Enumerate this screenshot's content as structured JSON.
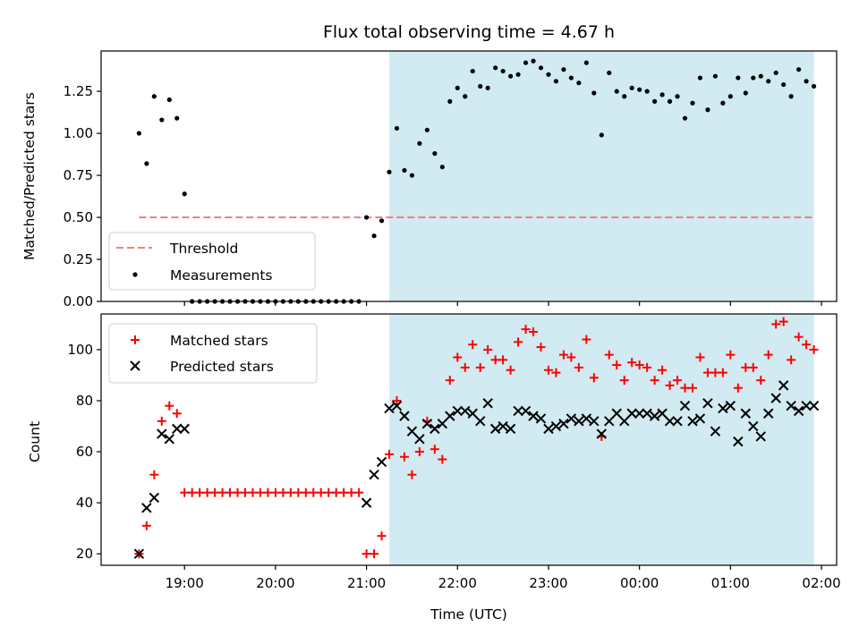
{
  "colors": {
    "observing_window": "#add8e6",
    "threshold": "#f08080",
    "measurements": "#000000",
    "matched": "#ff0000",
    "predicted": "#000000"
  },
  "chart_data": [
    {
      "type": "scatter",
      "title": "Flux total observing time = 4.67 h",
      "ylabel": "Matched/Predicted stars",
      "xlabel": "",
      "ylim": [
        0,
        1.49
      ],
      "yticks": [
        "0.00",
        "0.25",
        "0.50",
        "0.75",
        "1.00",
        "1.25"
      ],
      "observing_window": [
        "21:15",
        "25:55"
      ],
      "threshold": 0.5,
      "legend": {
        "position": "lower left",
        "entries": [
          "Threshold",
          "Measurements"
        ]
      },
      "series": [
        {
          "name": "Measurements",
          "marker": "dot",
          "points": [
            [
              "18:30",
              1.0
            ],
            [
              "18:35",
              0.82
            ],
            [
              "18:40",
              1.22
            ],
            [
              "18:45",
              1.08
            ],
            [
              "18:50",
              1.2
            ],
            [
              "18:55",
              1.09
            ],
            [
              "19:00",
              0.64
            ],
            [
              "19:05",
              0.0
            ],
            [
              "19:10",
              0.0
            ],
            [
              "19:15",
              0.0
            ],
            [
              "19:20",
              0.0
            ],
            [
              "19:25",
              0.0
            ],
            [
              "19:30",
              0.0
            ],
            [
              "19:35",
              0.0
            ],
            [
              "19:40",
              0.0
            ],
            [
              "19:45",
              0.0
            ],
            [
              "19:50",
              0.0
            ],
            [
              "19:55",
              0.0
            ],
            [
              "20:00",
              0.0
            ],
            [
              "20:05",
              0.0
            ],
            [
              "20:10",
              0.0
            ],
            [
              "20:15",
              0.0
            ],
            [
              "20:20",
              0.0
            ],
            [
              "20:25",
              0.0
            ],
            [
              "20:30",
              0.0
            ],
            [
              "20:35",
              0.0
            ],
            [
              "20:40",
              0.0
            ],
            [
              "20:45",
              0.0
            ],
            [
              "20:50",
              0.0
            ],
            [
              "20:55",
              0.0
            ],
            [
              "21:00",
              0.5
            ],
            [
              "21:05",
              0.39
            ],
            [
              "21:10",
              0.48
            ],
            [
              "21:15",
              0.77
            ],
            [
              "21:20",
              1.03
            ],
            [
              "21:25",
              0.78
            ],
            [
              "21:30",
              0.75
            ],
            [
              "21:35",
              0.94
            ],
            [
              "21:40",
              1.02
            ],
            [
              "21:45",
              0.88
            ],
            [
              "21:50",
              0.8
            ],
            [
              "21:55",
              1.19
            ],
            [
              "22:00",
              1.27
            ],
            [
              "22:05",
              1.22
            ],
            [
              "22:10",
              1.37
            ],
            [
              "22:15",
              1.28
            ],
            [
              "22:20",
              1.27
            ],
            [
              "22:25",
              1.39
            ],
            [
              "22:30",
              1.37
            ],
            [
              "22:35",
              1.34
            ],
            [
              "22:40",
              1.35
            ],
            [
              "22:45",
              1.42
            ],
            [
              "22:50",
              1.43
            ],
            [
              "22:55",
              1.39
            ],
            [
              "23:00",
              1.35
            ],
            [
              "23:05",
              1.31
            ],
            [
              "23:10",
              1.38
            ],
            [
              "23:15",
              1.33
            ],
            [
              "23:20",
              1.3
            ],
            [
              "23:25",
              1.42
            ],
            [
              "23:30",
              1.24
            ],
            [
              "23:35",
              0.99
            ],
            [
              "23:40",
              1.36
            ],
            [
              "23:45",
              1.25
            ],
            [
              "23:50",
              1.22
            ],
            [
              "23:55",
              1.27
            ],
            [
              "00:00",
              1.26
            ],
            [
              "00:05",
              1.25
            ],
            [
              "00:10",
              1.19
            ],
            [
              "00:15",
              1.23
            ],
            [
              "00:20",
              1.19
            ],
            [
              "00:25",
              1.22
            ],
            [
              "00:30",
              1.09
            ],
            [
              "00:35",
              1.18
            ],
            [
              "00:40",
              1.33
            ],
            [
              "00:45",
              1.14
            ],
            [
              "00:50",
              1.34
            ],
            [
              "00:55",
              1.18
            ],
            [
              "01:00",
              1.22
            ],
            [
              "01:05",
              1.33
            ],
            [
              "01:10",
              1.24
            ],
            [
              "01:15",
              1.33
            ],
            [
              "01:20",
              1.34
            ],
            [
              "01:25",
              1.31
            ],
            [
              "01:30",
              1.36
            ],
            [
              "01:35",
              1.29
            ],
            [
              "01:40",
              1.22
            ],
            [
              "01:45",
              1.38
            ],
            [
              "01:50",
              1.31
            ],
            [
              "01:55",
              1.28
            ]
          ]
        },
        {
          "name": "Threshold",
          "marker": "dashed-line",
          "points": [
            [
              "18:30",
              0.5
            ],
            [
              "01:55",
              0.5
            ]
          ]
        }
      ]
    },
    {
      "type": "scatter",
      "title": "",
      "ylabel": "Count",
      "xlabel": "Time (UTC)",
      "ylim": [
        15.5,
        114
      ],
      "yticks": [
        "20",
        "40",
        "60",
        "80",
        "100"
      ],
      "xticks": [
        "19:00",
        "20:00",
        "21:00",
        "22:00",
        "23:00",
        "00:00",
        "01:00",
        "02:00"
      ],
      "xlim": [
        "18:05",
        "26:10"
      ],
      "observing_window": [
        "21:15",
        "25:55"
      ],
      "legend": {
        "position": "upper left",
        "entries": [
          "Matched stars",
          "Predicted stars"
        ]
      },
      "series": [
        {
          "name": "Matched stars",
          "marker": "plus",
          "points": [
            [
              "18:30",
              20
            ],
            [
              "18:35",
              31
            ],
            [
              "18:40",
              51
            ],
            [
              "18:45",
              72
            ],
            [
              "18:50",
              78
            ],
            [
              "18:55",
              75
            ],
            [
              "19:00",
              44
            ],
            [
              "19:05",
              44
            ],
            [
              "19:10",
              44
            ],
            [
              "19:15",
              44
            ],
            [
              "19:20",
              44
            ],
            [
              "19:25",
              44
            ],
            [
              "19:30",
              44
            ],
            [
              "19:35",
              44
            ],
            [
              "19:40",
              44
            ],
            [
              "19:45",
              44
            ],
            [
              "19:50",
              44
            ],
            [
              "19:55",
              44
            ],
            [
              "20:00",
              44
            ],
            [
              "20:05",
              44
            ],
            [
              "20:10",
              44
            ],
            [
              "20:15",
              44
            ],
            [
              "20:20",
              44
            ],
            [
              "20:25",
              44
            ],
            [
              "20:30",
              44
            ],
            [
              "20:35",
              44
            ],
            [
              "20:40",
              44
            ],
            [
              "20:45",
              44
            ],
            [
              "20:50",
              44
            ],
            [
              "20:55",
              44
            ],
            [
              "21:00",
              20
            ],
            [
              "21:05",
              20
            ],
            [
              "21:10",
              27
            ],
            [
              "21:15",
              59
            ],
            [
              "21:20",
              80
            ],
            [
              "21:25",
              58
            ],
            [
              "21:30",
              51
            ],
            [
              "21:35",
              60
            ],
            [
              "21:40",
              72
            ],
            [
              "21:45",
              61
            ],
            [
              "21:50",
              57
            ],
            [
              "21:55",
              88
            ],
            [
              "22:00",
              97
            ],
            [
              "22:05",
              93
            ],
            [
              "22:10",
              102
            ],
            [
              "22:15",
              93
            ],
            [
              "22:20",
              100
            ],
            [
              "22:25",
              96
            ],
            [
              "22:30",
              96
            ],
            [
              "22:35",
              92
            ],
            [
              "22:40",
              103
            ],
            [
              "22:45",
              108
            ],
            [
              "22:50",
              107
            ],
            [
              "22:55",
              101
            ],
            [
              "23:00",
              92
            ],
            [
              "23:05",
              91
            ],
            [
              "23:10",
              98
            ],
            [
              "23:15",
              97
            ],
            [
              "23:20",
              93
            ],
            [
              "23:25",
              104
            ],
            [
              "23:30",
              89
            ],
            [
              "23:35",
              66
            ],
            [
              "23:40",
              98
            ],
            [
              "23:45",
              94
            ],
            [
              "23:50",
              88
            ],
            [
              "23:55",
              95
            ],
            [
              "00:00",
              94
            ],
            [
              "00:05",
              93
            ],
            [
              "00:10",
              88
            ],
            [
              "00:15",
              92
            ],
            [
              "00:20",
              86
            ],
            [
              "00:25",
              88
            ],
            [
              "00:30",
              85
            ],
            [
              "00:35",
              85
            ],
            [
              "00:40",
              97
            ],
            [
              "00:45",
              91
            ],
            [
              "00:50",
              91
            ],
            [
              "00:55",
              91
            ],
            [
              "01:00",
              98
            ],
            [
              "01:05",
              85
            ],
            [
              "01:10",
              93
            ],
            [
              "01:15",
              93
            ],
            [
              "01:20",
              88
            ],
            [
              "01:25",
              98
            ],
            [
              "01:30",
              110
            ],
            [
              "01:35",
              111
            ],
            [
              "01:40",
              96
            ],
            [
              "01:45",
              105
            ],
            [
              "01:50",
              102
            ],
            [
              "01:55",
              100
            ]
          ]
        },
        {
          "name": "Predicted stars",
          "marker": "x",
          "points": [
            [
              "18:30",
              20
            ],
            [
              "18:35",
              38
            ],
            [
              "18:40",
              42
            ],
            [
              "18:45",
              67
            ],
            [
              "18:50",
              65
            ],
            [
              "18:55",
              69
            ],
            [
              "19:00",
              69
            ],
            [
              "21:00",
              40
            ],
            [
              "21:05",
              51
            ],
            [
              "21:10",
              56
            ],
            [
              "21:15",
              77
            ],
            [
              "21:20",
              78
            ],
            [
              "21:25",
              74
            ],
            [
              "21:30",
              68
            ],
            [
              "21:35",
              65
            ],
            [
              "21:40",
              71
            ],
            [
              "21:45",
              69
            ],
            [
              "21:50",
              71
            ],
            [
              "21:55",
              74
            ],
            [
              "22:00",
              76
            ],
            [
              "22:05",
              76
            ],
            [
              "22:10",
              75
            ],
            [
              "22:15",
              72
            ],
            [
              "22:20",
              79
            ],
            [
              "22:25",
              69
            ],
            [
              "22:30",
              70
            ],
            [
              "22:35",
              69
            ],
            [
              "22:40",
              76
            ],
            [
              "22:45",
              76
            ],
            [
              "22:50",
              74
            ],
            [
              "22:55",
              73
            ],
            [
              "23:00",
              69
            ],
            [
              "23:05",
              70
            ],
            [
              "23:10",
              71
            ],
            [
              "23:15",
              73
            ],
            [
              "23:20",
              72
            ],
            [
              "23:25",
              73
            ],
            [
              "23:30",
              72
            ],
            [
              "23:35",
              67
            ],
            [
              "23:40",
              72
            ],
            [
              "23:45",
              75
            ],
            [
              "23:50",
              72
            ],
            [
              "23:55",
              75
            ],
            [
              "00:00",
              75
            ],
            [
              "00:05",
              75
            ],
            [
              "00:10",
              74
            ],
            [
              "00:15",
              75
            ],
            [
              "00:20",
              72
            ],
            [
              "00:25",
              72
            ],
            [
              "00:30",
              78
            ],
            [
              "00:35",
              72
            ],
            [
              "00:40",
              73
            ],
            [
              "00:45",
              79
            ],
            [
              "00:50",
              68
            ],
            [
              "00:55",
              77
            ],
            [
              "01:00",
              78
            ],
            [
              "01:05",
              64
            ],
            [
              "01:10",
              75
            ],
            [
              "01:15",
              70
            ],
            [
              "01:20",
              66
            ],
            [
              "01:25",
              75
            ],
            [
              "01:30",
              81
            ],
            [
              "01:35",
              86
            ],
            [
              "01:40",
              78
            ],
            [
              "01:45",
              76
            ],
            [
              "01:50",
              78
            ],
            [
              "01:55",
              78
            ]
          ]
        }
      ]
    }
  ]
}
